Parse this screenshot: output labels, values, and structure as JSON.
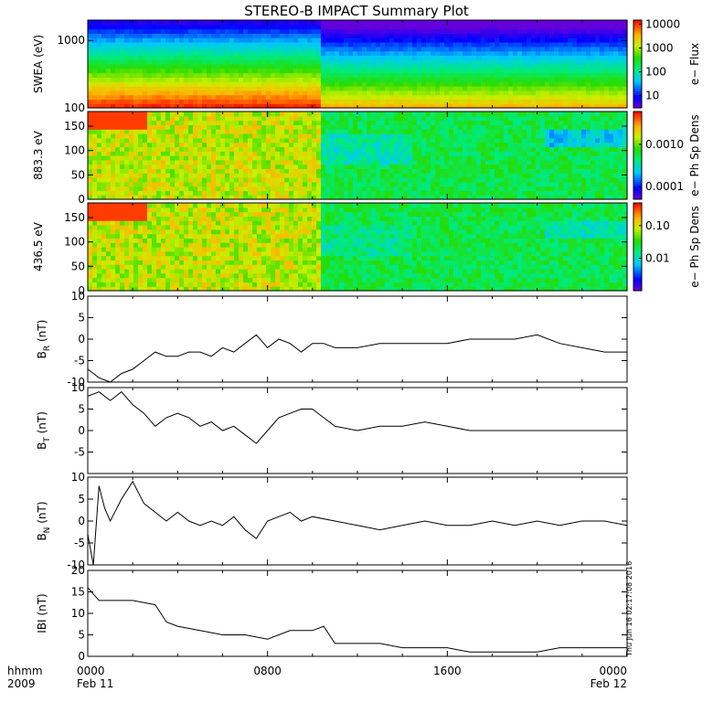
{
  "title": "STEREO-B IMPACT Summary Plot",
  "stamp": "Thu Jun 16 02:17:08 2016",
  "chart_data": [
    {
      "type": "heatmap",
      "id": "swea",
      "ylabel": "SWEA (eV)",
      "ylim": [
        100,
        2000
      ],
      "yscale": "log",
      "yticks": [
        "100",
        "1000"
      ],
      "cbar_label": "e− Flux",
      "cbar_scale": "log",
      "cbar_range": [
        3,
        15000
      ],
      "cbar_ticks": [
        "10",
        "100",
        "1000",
        "10000"
      ],
      "cbar_tick_values": [
        10,
        100,
        1000,
        10000
      ]
    },
    {
      "type": "heatmap",
      "id": "pad883",
      "ylabel": "883.3 eV",
      "ylim": [
        0,
        180
      ],
      "yticks": [
        "0",
        "50",
        "100",
        "150"
      ],
      "cbar_label": "e− Ph Sp Dens",
      "cbar_scale": "log",
      "cbar_range": [
        5e-05,
        0.006
      ],
      "cbar_ticks": [
        "0.0001",
        "0.0010"
      ],
      "cbar_tick_values": [
        0.0001,
        0.001
      ]
    },
    {
      "type": "heatmap",
      "id": "pad436",
      "ylabel": "436.5 eV",
      "ylim": [
        0,
        180
      ],
      "yticks": [
        "0",
        "50",
        "100",
        "150"
      ],
      "cbar_label": "e− Ph Sp Dens",
      "cbar_scale": "log",
      "cbar_range": [
        0.001,
        0.5
      ],
      "cbar_ticks": [
        "0.01",
        "0.10"
      ],
      "cbar_tick_values": [
        0.01,
        0.1
      ]
    },
    {
      "type": "line",
      "id": "br",
      "ylabel_main": "B",
      "ylabel_sub": "R",
      "ylabel_unit": " (nT)",
      "ylim": [
        -10,
        10
      ],
      "yticks": [
        "-10",
        "-5",
        "0",
        "5",
        "10"
      ],
      "x": [
        0,
        0.5,
        1,
        1.5,
        2,
        2.5,
        3,
        3.5,
        4,
        4.5,
        5,
        5.5,
        6,
        6.5,
        7,
        7.5,
        8,
        8.5,
        9,
        9.5,
        10,
        10.5,
        11,
        12,
        13,
        14,
        15,
        16,
        17,
        18,
        19,
        20,
        21,
        22,
        23,
        24
      ],
      "y": [
        -7,
        -9,
        -10,
        -8,
        -7,
        -5,
        -3,
        -4,
        -4,
        -3,
        -3,
        -4,
        -2,
        -3,
        -1,
        1,
        -2,
        0,
        -1,
        -3,
        -1,
        -1,
        -2,
        -2,
        -1,
        -1,
        -1,
        -1,
        0,
        0,
        0,
        1,
        -1,
        -2,
        -3,
        -3
      ]
    },
    {
      "type": "line",
      "id": "bt",
      "ylabel_main": "B",
      "ylabel_sub": "T",
      "ylabel_unit": " (nT)",
      "ylim": [
        -10,
        10
      ],
      "yticks": [
        "-5",
        "0",
        "5",
        "10"
      ],
      "x": [
        0,
        0.5,
        1,
        1.5,
        2,
        2.5,
        3,
        3.5,
        4,
        4.5,
        5,
        5.5,
        6,
        6.5,
        7,
        7.5,
        8,
        8.5,
        9,
        9.5,
        10,
        10.5,
        11,
        12,
        13,
        14,
        15,
        16,
        17,
        18,
        19,
        20,
        21,
        22,
        23,
        24
      ],
      "y": [
        8,
        9,
        7,
        9,
        6,
        4,
        1,
        3,
        4,
        3,
        1,
        2,
        0,
        1,
        -1,
        -3,
        0,
        3,
        4,
        5,
        5,
        3,
        1,
        0,
        1,
        1,
        2,
        1,
        0,
        0,
        0,
        0,
        0,
        0,
        0,
        0
      ]
    },
    {
      "type": "line",
      "id": "bn",
      "ylabel_main": "B",
      "ylabel_sub": "N",
      "ylabel_unit": " (nT)",
      "ylim": [
        -10,
        10
      ],
      "yticks": [
        "-10",
        "-5",
        "0",
        "5",
        "10"
      ],
      "x": [
        0,
        0.25,
        0.5,
        0.75,
        1,
        1.5,
        2,
        2.5,
        3,
        3.5,
        4,
        4.5,
        5,
        5.5,
        6,
        6.5,
        7,
        7.5,
        8,
        8.5,
        9,
        9.5,
        10,
        11,
        12,
        13,
        14,
        15,
        16,
        17,
        18,
        19,
        20,
        21,
        22,
        23,
        24
      ],
      "y": [
        -3,
        -10,
        8,
        3,
        0,
        5,
        9,
        4,
        2,
        0,
        2,
        0,
        -1,
        0,
        -1,
        1,
        -2,
        -4,
        0,
        1,
        2,
        0,
        1,
        0,
        -1,
        -2,
        -1,
        0,
        -1,
        -1,
        0,
        -1,
        0,
        -1,
        0,
        0,
        -1
      ]
    },
    {
      "type": "line",
      "id": "bmag",
      "ylabel_main": "IBI (nT)",
      "ylim": [
        0,
        20
      ],
      "yticks": [
        "0",
        "5",
        "10",
        "15",
        "20"
      ],
      "x": [
        0,
        0.5,
        1,
        2,
        3,
        3.5,
        4,
        5,
        6,
        7,
        8,
        9,
        10,
        10.5,
        11,
        12,
        13,
        14,
        15,
        16,
        17,
        18,
        19,
        20,
        21,
        22,
        23,
        24
      ],
      "y": [
        16,
        13,
        13,
        13,
        12,
        8,
        7,
        6,
        5,
        5,
        4,
        6,
        6,
        7,
        3,
        3,
        3,
        2,
        2,
        2,
        1,
        1,
        1,
        1,
        2,
        2,
        2,
        2
      ]
    }
  ],
  "x_axis": {
    "xlim": [
      0,
      24
    ],
    "corner_label_1": "hhmm",
    "corner_label_2": "2009",
    "ticks": [
      {
        "pos": 0,
        "time": "0000",
        "date": "Feb 11"
      },
      {
        "pos": 8,
        "time": "0800",
        "date": ""
      },
      {
        "pos": 16,
        "time": "1600",
        "date": ""
      },
      {
        "pos": 24,
        "time": "0000",
        "date": "Feb 12"
      }
    ]
  }
}
